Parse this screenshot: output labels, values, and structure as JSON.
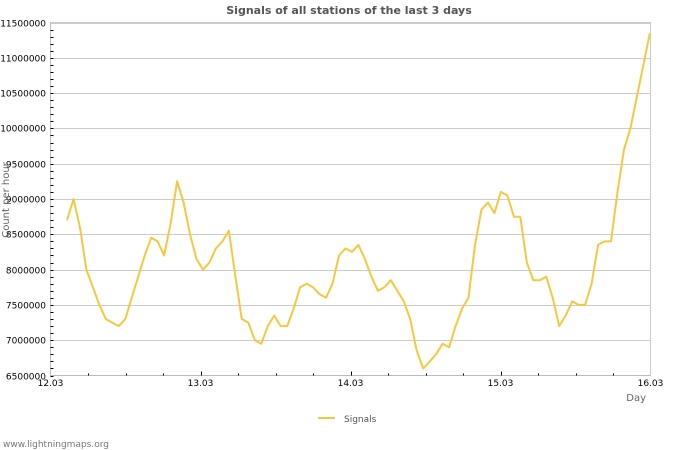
{
  "chart_data": {
    "type": "line",
    "title": "Signals of all stations of the last 3 days",
    "xlabel": "Day",
    "ylabel": "Count per hour",
    "x_tick_labels": [
      "12.03",
      "13.03",
      "14.03",
      "15.03",
      "16.03"
    ],
    "y_tick_labels": [
      "6500000",
      "7000000",
      "7500000",
      "8000000",
      "8500000",
      "9000000",
      "9500000",
      "10000000",
      "10500000",
      "11000000",
      "11500000"
    ],
    "ylim": [
      6500000,
      11500000
    ],
    "xlim_days": [
      0,
      4
    ],
    "grid": true,
    "legend_position": "bottom-center",
    "series": [
      {
        "name": "Signals",
        "color": "#f5c842",
        "x_hours_from_12_03": [
          1,
          2,
          3,
          4,
          5,
          6,
          7,
          8,
          9,
          10,
          11,
          12,
          13,
          14,
          15,
          16,
          17,
          18,
          19,
          20,
          21,
          22,
          23,
          24,
          25,
          26,
          27,
          28,
          29,
          30,
          31,
          32,
          33,
          34,
          35,
          36,
          37,
          38,
          39,
          40,
          41,
          42,
          43,
          44,
          45,
          46,
          47,
          48,
          49,
          50,
          51,
          52,
          53,
          54,
          55,
          56,
          57,
          58,
          59,
          60,
          61,
          62,
          63,
          64,
          65,
          66,
          67,
          68,
          69,
          70,
          71,
          72,
          73,
          74,
          75,
          76,
          77,
          78,
          79,
          80,
          81,
          82,
          83,
          84,
          85,
          86,
          87,
          88,
          89,
          90,
          91
        ],
        "values": [
          8700000,
          9000000,
          8600000,
          8000000,
          7750000,
          7500000,
          7300000,
          7250000,
          7200000,
          7300000,
          7600000,
          7900000,
          8200000,
          8450000,
          8400000,
          8200000,
          8650000,
          9250000,
          8950000,
          8500000,
          8150000,
          8000000,
          8100000,
          8300000,
          8400000,
          8550000,
          7900000,
          7300000,
          7250000,
          7000000,
          6950000,
          7200000,
          7350000,
          7200000,
          7200000,
          7450000,
          7750000,
          7800000,
          7750000,
          7650000,
          7600000,
          7800000,
          8200000,
          8300000,
          8250000,
          8350000,
          8150000,
          7900000,
          7700000,
          7750000,
          7850000,
          7700000,
          7550000,
          7300000,
          6850000,
          6600000,
          6700000,
          6800000,
          6950000,
          6900000,
          7200000,
          7450000,
          7600000,
          8350000,
          8850000,
          8950000,
          8800000,
          9100000,
          9050000,
          8750000,
          8750000,
          8100000,
          7850000,
          7850000,
          7900000,
          7600000,
          7200000,
          7350000,
          7550000,
          7500000,
          7500000,
          7800000,
          8350000,
          8400000,
          8400000,
          9100000,
          9700000,
          10000000,
          10450000,
          10900000,
          11350000
        ]
      }
    ]
  },
  "legend": {
    "items": [
      {
        "label": "Signals",
        "color": "#f5c842"
      }
    ]
  },
  "footer": {
    "text": "www.lightningmaps.org"
  }
}
